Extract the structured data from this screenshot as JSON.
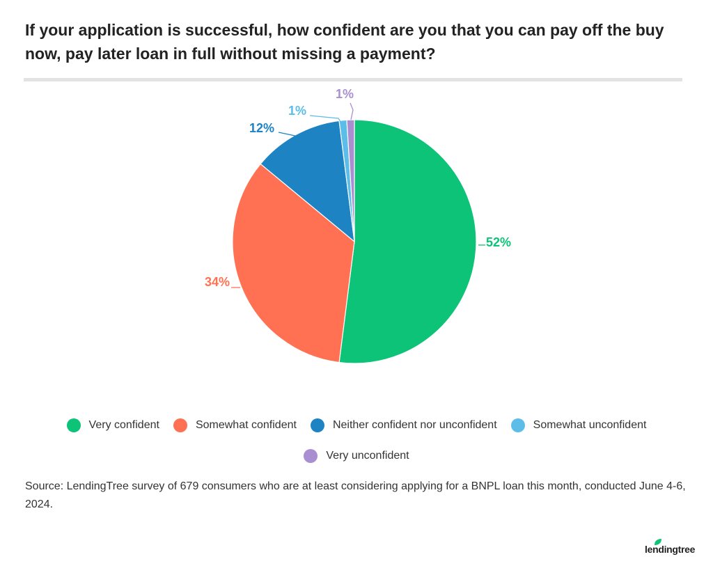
{
  "title": "If your application is successful, how confident are you that you can pay off the buy now, pay later loan in full without missing a payment?",
  "chart_data": {
    "type": "pie",
    "title": "If your application is successful, how confident are you that you can pay off the buy now, pay later loan in full without missing a payment?",
    "start_angle_deg": 0,
    "direction": "clockwise",
    "slices": [
      {
        "label": "Very confident",
        "value": 52,
        "display": "52%",
        "color": "#0cc377"
      },
      {
        "label": "Somewhat confident",
        "value": 34,
        "display": "34%",
        "color": "#ff7152"
      },
      {
        "label": "Neither confident nor unconfident",
        "value": 12,
        "display": "12%",
        "color": "#1d83c3"
      },
      {
        "label": "Somewhat unconfident",
        "value": 1,
        "display": "1%",
        "color": "#5bbde8"
      },
      {
        "label": "Very unconfident",
        "value": 1,
        "display": "1%",
        "color": "#a98ed1"
      }
    ],
    "legend_position": "bottom"
  },
  "source": "Source: LendingTree survey of 679 consumers who are at least considering applying for a BNPL loan this month, conducted June 4-6, 2024.",
  "brand": {
    "name": "lendingtree",
    "icon": "leaf-icon",
    "color": "#0cc377"
  }
}
